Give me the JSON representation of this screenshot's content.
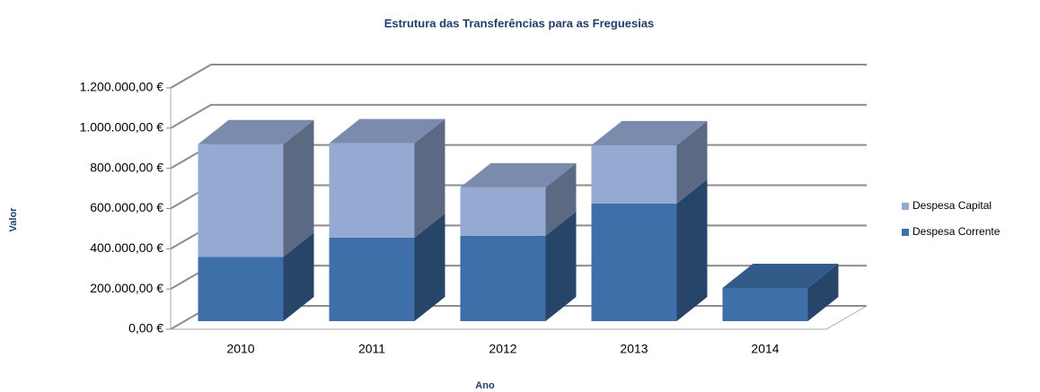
{
  "chart_data": {
    "type": "bar3d",
    "stacked": true,
    "title": "Estrutura das Transferências para as Freguesias",
    "x_label": "Ano",
    "y_label": "Valor",
    "categories": [
      "2010",
      "2011",
      "2012",
      "2013",
      "2014"
    ],
    "series": [
      {
        "name": "Despesa Corrente",
        "color": "#3e6fa8",
        "values": [
          320000,
          415000,
          425000,
          585000,
          165000
        ]
      },
      {
        "name": "Despesa Capital",
        "color": "#95a9d3",
        "values": [
          560000,
          470000,
          240000,
          290000,
          0
        ]
      }
    ],
    "ylim": [
      0,
      1200000
    ],
    "yticks": [
      {
        "value": 0,
        "label": "0,00 €"
      },
      {
        "value": 200000,
        "label": "200.000,00 €"
      },
      {
        "value": 400000,
        "label": "400.000,00 €"
      },
      {
        "value": 600000,
        "label": "600.000,00 €"
      },
      {
        "value": 800000,
        "label": "800.000,00 €"
      },
      {
        "value": 1000000,
        "label": "1.000.000,00 €"
      },
      {
        "value": 1200000,
        "label": "1.200.000,00 €"
      }
    ],
    "grid": true,
    "legend": "right"
  }
}
